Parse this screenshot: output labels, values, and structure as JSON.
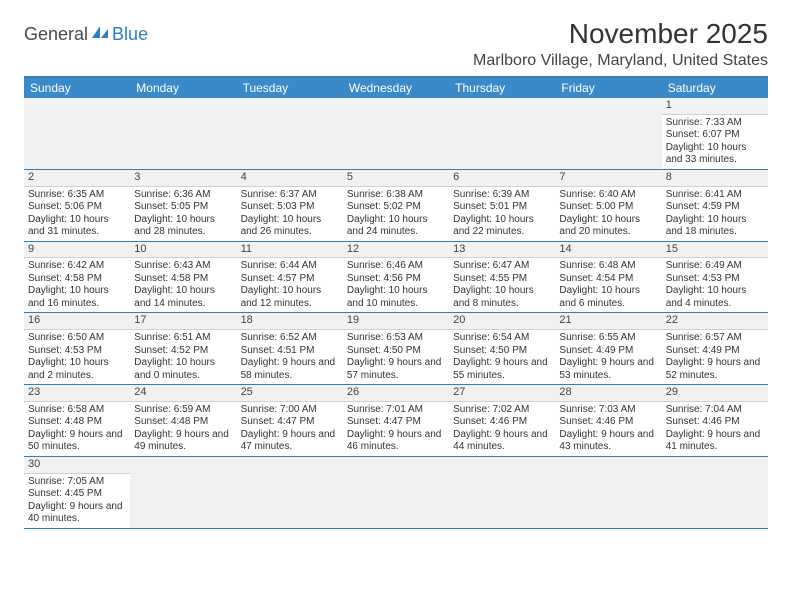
{
  "logo": {
    "text1": "General",
    "text2": "Blue"
  },
  "title": "November 2025",
  "location": "Marlboro Village, Maryland, United States",
  "colors": {
    "header_bar": "#3a8ac9",
    "border": "#2f7fbf",
    "grey_row": "#f1f1f1"
  },
  "days_of_week": [
    "Sunday",
    "Monday",
    "Tuesday",
    "Wednesday",
    "Thursday",
    "Friday",
    "Saturday"
  ],
  "weeks": [
    [
      {
        "empty": true
      },
      {
        "empty": true
      },
      {
        "empty": true
      },
      {
        "empty": true
      },
      {
        "empty": true
      },
      {
        "empty": true
      },
      {
        "num": "1",
        "sunrise": "Sunrise: 7:33 AM",
        "sunset": "Sunset: 6:07 PM",
        "daylight": "Daylight: 10 hours and 33 minutes."
      }
    ],
    [
      {
        "num": "2",
        "sunrise": "Sunrise: 6:35 AM",
        "sunset": "Sunset: 5:06 PM",
        "daylight": "Daylight: 10 hours and 31 minutes."
      },
      {
        "num": "3",
        "sunrise": "Sunrise: 6:36 AM",
        "sunset": "Sunset: 5:05 PM",
        "daylight": "Daylight: 10 hours and 28 minutes."
      },
      {
        "num": "4",
        "sunrise": "Sunrise: 6:37 AM",
        "sunset": "Sunset: 5:03 PM",
        "daylight": "Daylight: 10 hours and 26 minutes."
      },
      {
        "num": "5",
        "sunrise": "Sunrise: 6:38 AM",
        "sunset": "Sunset: 5:02 PM",
        "daylight": "Daylight: 10 hours and 24 minutes."
      },
      {
        "num": "6",
        "sunrise": "Sunrise: 6:39 AM",
        "sunset": "Sunset: 5:01 PM",
        "daylight": "Daylight: 10 hours and 22 minutes."
      },
      {
        "num": "7",
        "sunrise": "Sunrise: 6:40 AM",
        "sunset": "Sunset: 5:00 PM",
        "daylight": "Daylight: 10 hours and 20 minutes."
      },
      {
        "num": "8",
        "sunrise": "Sunrise: 6:41 AM",
        "sunset": "Sunset: 4:59 PM",
        "daylight": "Daylight: 10 hours and 18 minutes."
      }
    ],
    [
      {
        "num": "9",
        "sunrise": "Sunrise: 6:42 AM",
        "sunset": "Sunset: 4:58 PM",
        "daylight": "Daylight: 10 hours and 16 minutes."
      },
      {
        "num": "10",
        "sunrise": "Sunrise: 6:43 AM",
        "sunset": "Sunset: 4:58 PM",
        "daylight": "Daylight: 10 hours and 14 minutes."
      },
      {
        "num": "11",
        "sunrise": "Sunrise: 6:44 AM",
        "sunset": "Sunset: 4:57 PM",
        "daylight": "Daylight: 10 hours and 12 minutes."
      },
      {
        "num": "12",
        "sunrise": "Sunrise: 6:46 AM",
        "sunset": "Sunset: 4:56 PM",
        "daylight": "Daylight: 10 hours and 10 minutes."
      },
      {
        "num": "13",
        "sunrise": "Sunrise: 6:47 AM",
        "sunset": "Sunset: 4:55 PM",
        "daylight": "Daylight: 10 hours and 8 minutes."
      },
      {
        "num": "14",
        "sunrise": "Sunrise: 6:48 AM",
        "sunset": "Sunset: 4:54 PM",
        "daylight": "Daylight: 10 hours and 6 minutes."
      },
      {
        "num": "15",
        "sunrise": "Sunrise: 6:49 AM",
        "sunset": "Sunset: 4:53 PM",
        "daylight": "Daylight: 10 hours and 4 minutes."
      }
    ],
    [
      {
        "num": "16",
        "sunrise": "Sunrise: 6:50 AM",
        "sunset": "Sunset: 4:53 PM",
        "daylight": "Daylight: 10 hours and 2 minutes."
      },
      {
        "num": "17",
        "sunrise": "Sunrise: 6:51 AM",
        "sunset": "Sunset: 4:52 PM",
        "daylight": "Daylight: 10 hours and 0 minutes."
      },
      {
        "num": "18",
        "sunrise": "Sunrise: 6:52 AM",
        "sunset": "Sunset: 4:51 PM",
        "daylight": "Daylight: 9 hours and 58 minutes."
      },
      {
        "num": "19",
        "sunrise": "Sunrise: 6:53 AM",
        "sunset": "Sunset: 4:50 PM",
        "daylight": "Daylight: 9 hours and 57 minutes."
      },
      {
        "num": "20",
        "sunrise": "Sunrise: 6:54 AM",
        "sunset": "Sunset: 4:50 PM",
        "daylight": "Daylight: 9 hours and 55 minutes."
      },
      {
        "num": "21",
        "sunrise": "Sunrise: 6:55 AM",
        "sunset": "Sunset: 4:49 PM",
        "daylight": "Daylight: 9 hours and 53 minutes."
      },
      {
        "num": "22",
        "sunrise": "Sunrise: 6:57 AM",
        "sunset": "Sunset: 4:49 PM",
        "daylight": "Daylight: 9 hours and 52 minutes."
      }
    ],
    [
      {
        "num": "23",
        "sunrise": "Sunrise: 6:58 AM",
        "sunset": "Sunset: 4:48 PM",
        "daylight": "Daylight: 9 hours and 50 minutes."
      },
      {
        "num": "24",
        "sunrise": "Sunrise: 6:59 AM",
        "sunset": "Sunset: 4:48 PM",
        "daylight": "Daylight: 9 hours and 49 minutes."
      },
      {
        "num": "25",
        "sunrise": "Sunrise: 7:00 AM",
        "sunset": "Sunset: 4:47 PM",
        "daylight": "Daylight: 9 hours and 47 minutes."
      },
      {
        "num": "26",
        "sunrise": "Sunrise: 7:01 AM",
        "sunset": "Sunset: 4:47 PM",
        "daylight": "Daylight: 9 hours and 46 minutes."
      },
      {
        "num": "27",
        "sunrise": "Sunrise: 7:02 AM",
        "sunset": "Sunset: 4:46 PM",
        "daylight": "Daylight: 9 hours and 44 minutes."
      },
      {
        "num": "28",
        "sunrise": "Sunrise: 7:03 AM",
        "sunset": "Sunset: 4:46 PM",
        "daylight": "Daylight: 9 hours and 43 minutes."
      },
      {
        "num": "29",
        "sunrise": "Sunrise: 7:04 AM",
        "sunset": "Sunset: 4:46 PM",
        "daylight": "Daylight: 9 hours and 41 minutes."
      }
    ],
    [
      {
        "num": "30",
        "sunrise": "Sunrise: 7:05 AM",
        "sunset": "Sunset: 4:45 PM",
        "daylight": "Daylight: 9 hours and 40 minutes."
      },
      {
        "empty": true
      },
      {
        "empty": true
      },
      {
        "empty": true
      },
      {
        "empty": true
      },
      {
        "empty": true
      },
      {
        "empty": true
      }
    ]
  ]
}
